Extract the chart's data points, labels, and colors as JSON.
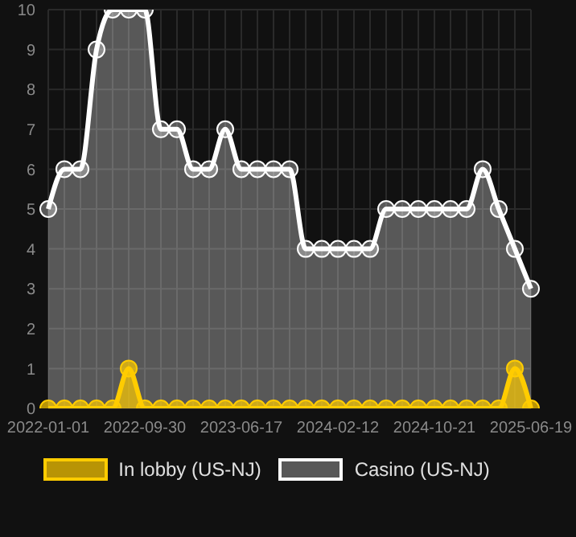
{
  "chart_data": {
    "type": "area",
    "categories": [
      "2022-01-01",
      null,
      null,
      null,
      null,
      null,
      "2022-09-30",
      null,
      null,
      null,
      null,
      null,
      "2023-06-17",
      null,
      null,
      null,
      null,
      null,
      "2024-02-12",
      null,
      null,
      null,
      null,
      null,
      "2024-10-21",
      null,
      null,
      null,
      null,
      null,
      "2025-06-19"
    ],
    "series": [
      {
        "name": "In lobby (US-NJ)",
        "color": "#ffcc00",
        "values": [
          0,
          0,
          0,
          0,
          0,
          1,
          0,
          0,
          0,
          0,
          0,
          0,
          0,
          0,
          0,
          0,
          0,
          0,
          0,
          0,
          0,
          0,
          0,
          0,
          0,
          0,
          0,
          0,
          0,
          1,
          0
        ]
      },
      {
        "name": "Casino (US-NJ)",
        "color": "#ffffff",
        "values": [
          5,
          6,
          6,
          9,
          10,
          10,
          10,
          7,
          7,
          6,
          6,
          7,
          6,
          6,
          6,
          6,
          4,
          4,
          4,
          4,
          4,
          5,
          5,
          5,
          5,
          5,
          5,
          6,
          5,
          4,
          3
        ]
      }
    ],
    "ylim": [
      0,
      10
    ],
    "yticks": [
      0,
      1,
      2,
      3,
      4,
      5,
      6,
      7,
      8,
      9,
      10
    ],
    "grid": true,
    "legend": "bottom",
    "marker": "circle"
  }
}
